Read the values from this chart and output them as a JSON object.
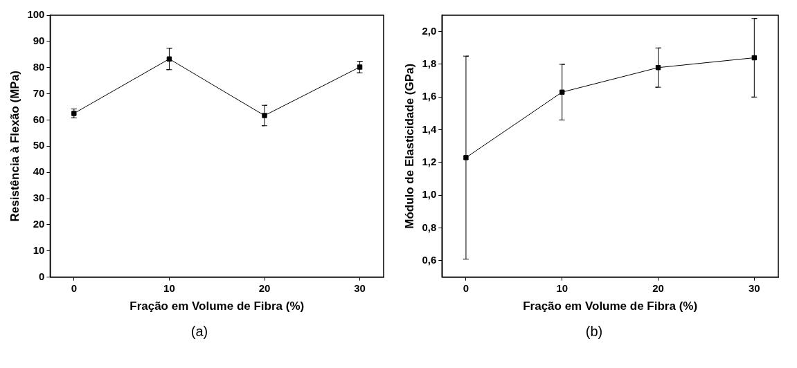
{
  "chart_data": [
    {
      "type": "line",
      "xlabel": "Fração em Volume de Fibra (%)",
      "ylabel": "Resistência à Flexão (MPa)",
      "x": [
        0,
        10,
        20,
        30
      ],
      "series": [
        {
          "color": "#000000",
          "values": [
            62.5,
            83.3,
            61.7,
            80.2
          ],
          "errors": [
            1.7,
            4.1,
            3.9,
            2.2
          ]
        }
      ],
      "xlim": [
        -2.5,
        32.5
      ],
      "xticks": [
        0,
        10,
        20,
        30
      ],
      "ylim": [
        0,
        100
      ],
      "yticks": [
        0,
        10,
        20,
        30,
        40,
        50,
        60,
        70,
        80,
        90,
        100
      ],
      "marker": "square",
      "line_style": "solid",
      "grid": false,
      "legend": false,
      "annotations": [
        "(a)"
      ]
    },
    {
      "type": "line",
      "xlabel": "Fração em Volume de Fibra (%)",
      "ylabel": "Módulo de Elasticidade (GPa)",
      "x": [
        0,
        10,
        20,
        30
      ],
      "series": [
        {
          "color": "#000000",
          "values": [
            1.23,
            1.63,
            1.78,
            1.84
          ],
          "errors": [
            0.62,
            0.17,
            0.12,
            0.24
          ]
        }
      ],
      "xlim": [
        -2.5,
        32.5
      ],
      "xticks": [
        0,
        10,
        20,
        30
      ],
      "ylim": [
        0.5,
        2.1
      ],
      "yticks": [
        {
          "value": 0.6,
          "label": "0,6"
        },
        {
          "value": 0.8,
          "label": "0,8"
        },
        {
          "value": 1.0,
          "label": "1,0"
        },
        {
          "value": 1.2,
          "label": "1,2"
        },
        {
          "value": 1.4,
          "label": "1,4"
        },
        {
          "value": 1.6,
          "label": "1,6"
        },
        {
          "value": 1.8,
          "label": "1,8"
        },
        {
          "value": 2.0,
          "label": "2,0"
        }
      ],
      "marker": "square",
      "line_style": "solid",
      "grid": false,
      "legend": false,
      "annotations": [
        "(b)"
      ]
    }
  ]
}
